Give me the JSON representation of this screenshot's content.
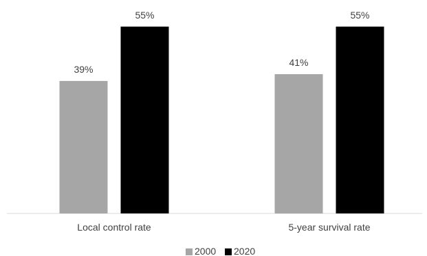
{
  "chart_data": {
    "type": "bar",
    "title": "",
    "xlabel": "",
    "ylabel": "",
    "categories": [
      "Local control rate",
      "5-year survival rate"
    ],
    "series": [
      {
        "name": "2000",
        "values": [
          39,
          41
        ],
        "labels": [
          "39%",
          "41%"
        ],
        "color": "#a6a6a6"
      },
      {
        "name": "2020",
        "values": [
          55,
          55
        ],
        "labels": [
          "55%",
          "55%"
        ],
        "color": "#000000"
      }
    ],
    "ylim": [
      0,
      60
    ],
    "unit": "%",
    "grid": false,
    "legend_position": "bottom"
  }
}
